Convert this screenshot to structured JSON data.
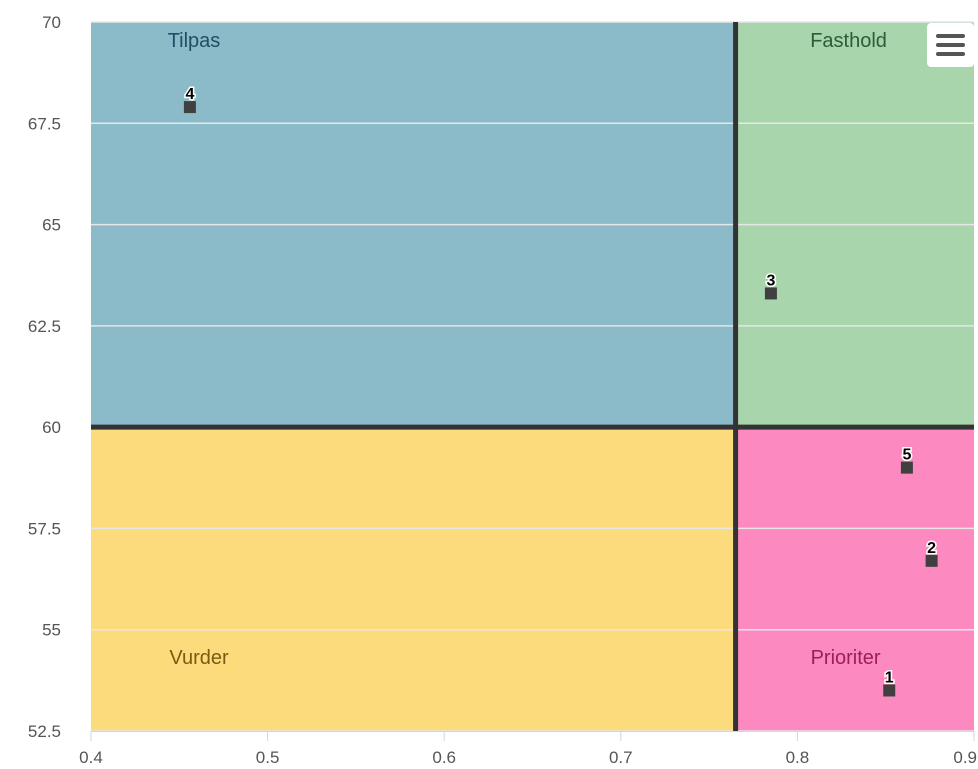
{
  "chart_data": {
    "type": "scatter",
    "title": "",
    "xlabel": "",
    "ylabel": "",
    "xlim": [
      0.4,
      0.9
    ],
    "ylim": [
      52.5,
      70
    ],
    "x_ticks": [
      "0.4",
      "0.5",
      "0.6",
      "0.7",
      "0.8",
      "0.9"
    ],
    "y_ticks": [
      "52.5",
      "55",
      "57.5",
      "60",
      "62.5",
      "65",
      "67.5",
      "70"
    ],
    "x_split": 0.765,
    "y_split": 60,
    "grid": true,
    "legend": "none",
    "quadrants": [
      {
        "label": "Tilpas",
        "position": "top-left",
        "color": "#8bbac9"
      },
      {
        "label": "Fasthold",
        "position": "top-right",
        "color": "#a8d5ab"
      },
      {
        "label": "Vurder",
        "position": "bottom-left",
        "color": "#fcdb7c"
      },
      {
        "label": "Prioriter",
        "position": "bottom-right",
        "color": "#fc8ac0"
      }
    ],
    "points": [
      {
        "label": "1",
        "x": 0.852,
        "y": 53.5
      },
      {
        "label": "2",
        "x": 0.876,
        "y": 56.7
      },
      {
        "label": "3",
        "x": 0.785,
        "y": 63.3
      },
      {
        "label": "4",
        "x": 0.456,
        "y": 67.9
      },
      {
        "label": "5",
        "x": 0.862,
        "y": 59.0
      }
    ],
    "colors": {
      "marker": "#404040",
      "divider": "#333333",
      "gridline": "#e6e6e6"
    }
  },
  "toolbar": {
    "menu_icon": "hamburger-menu-icon"
  }
}
